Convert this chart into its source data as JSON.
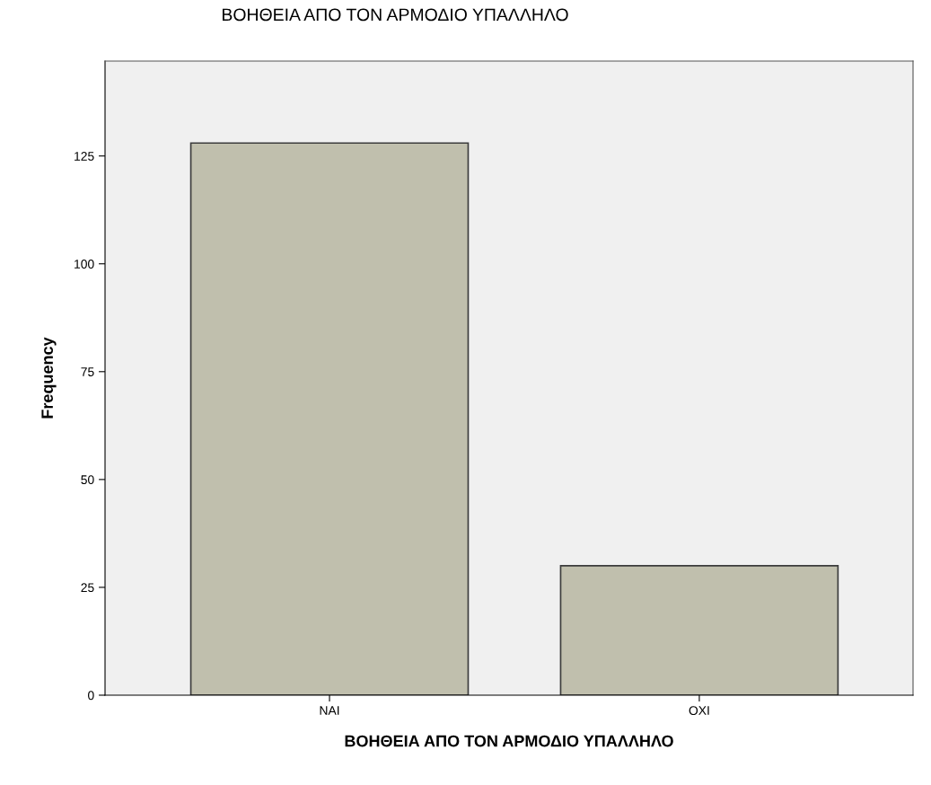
{
  "chart_data": {
    "type": "bar",
    "title": "ΒΟΗΘΕΙΑ ΑΠΟ ΤΟΝ ΑΡΜΟΔΙΟ ΥΠΑΛΛΗΛΟ",
    "xlabel": "ΒΟΗΘΕΙΑ ΑΠΟ ΤΟΝ ΑΡΜΟΔΙΟ ΥΠΑΛΛΗΛΟ",
    "ylabel": "Frequency",
    "categories": [
      "ΝΑΙ",
      "ΟΧΙ"
    ],
    "values": [
      128,
      30
    ],
    "color": "#c0bfad",
    "ylim": [
      0,
      147
    ],
    "yticks": [
      0,
      25,
      50,
      75,
      100,
      125
    ],
    "grid": false,
    "legend": false
  }
}
